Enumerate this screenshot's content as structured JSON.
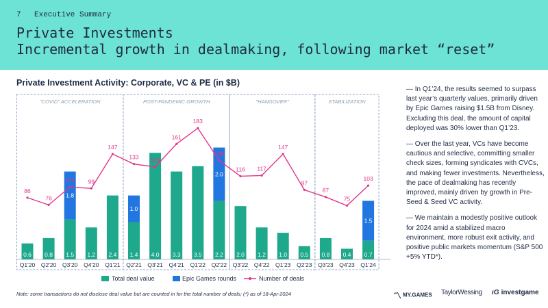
{
  "header": {
    "page_number": "7",
    "section": "Executive Summary",
    "title_line1": "Private Investments",
    "title_line2": "Incremental growth in dealmaking, following market “reset”"
  },
  "chart_title": "Private Investment Activity: Corporate, VC & PE (in $B)",
  "chart_data": {
    "type": "bar",
    "stacked": true,
    "categories": [
      "Q1'20",
      "Q2'20",
      "Q3'20",
      "Q4'20",
      "Q1'21",
      "Q2'21",
      "Q3'21",
      "Q4'21",
      "Q1'22",
      "Q2'22",
      "Q3'22",
      "Q4'22",
      "Q1'23",
      "Q2'23",
      "Q3'23",
      "Q4'23",
      "Q1'24"
    ],
    "series": [
      {
        "name": "Total deal value",
        "type": "bar",
        "color": "#1ea88c",
        "values": [
          0.6,
          0.8,
          1.5,
          1.2,
          2.4,
          1.4,
          4.0,
          3.3,
          3.5,
          2.2,
          2.0,
          1.2,
          1.0,
          0.5,
          0.8,
          0.4,
          0.7
        ],
        "labels": [
          "0.6",
          "0.8",
          "1.5",
          "1.2",
          "2.4",
          "1.4",
          "4.0",
          "3.3",
          "3.5",
          "2.2",
          "2.0",
          "1.2",
          "1.0",
          "0.5",
          "0.8",
          "0.4",
          "0.7"
        ]
      },
      {
        "name": "Epic Games rounds",
        "type": "bar",
        "color": "#2176e0",
        "values": [
          0,
          0,
          1.8,
          0,
          0,
          1.0,
          0,
          0,
          0,
          2.0,
          0,
          0,
          0,
          0,
          0,
          0,
          1.5
        ],
        "labels": [
          "",
          "",
          "1.8",
          "",
          "",
          "1.0",
          "",
          "",
          "",
          "2.0",
          "",
          "",
          "",
          "",
          "",
          "",
          "1.5"
        ]
      },
      {
        "name": "Number of deals",
        "type": "line",
        "color": "#e0368a",
        "values": [
          86,
          76,
          101,
          99,
          147,
          133,
          129,
          161,
          183,
          138,
          116,
          117,
          147,
          97,
          87,
          75,
          103
        ],
        "labels": [
          "86",
          "76",
          "101",
          "99",
          "147",
          "133",
          "129",
          "161",
          "183",
          "138",
          "116",
          "117",
          "147",
          "97",
          "87",
          "75",
          "103"
        ]
      }
    ],
    "periods": [
      {
        "label": "\"COVID\" ACCELERATION",
        "start": 0,
        "end": 4
      },
      {
        "label": "POST-PANDEMIC GROWTH",
        "start": 5,
        "end": 9
      },
      {
        "label": "\"HANGOVER\"",
        "start": 10,
        "end": 13
      },
      {
        "label": "STABILIZATION",
        "start": 14,
        "end": 16
      }
    ],
    "bar_ylim": [
      0,
      4.6
    ],
    "line_ylim": [
      0,
      230
    ]
  },
  "commentary": [
    "— In Q1’24, the results seemed to surpass last year’s quarterly values, primarily driven by Epic Games raising $1.5B from Disney. Excluding this deal, the amount of capital deployed was 30% lower than Q1’23.",
    "— Over the last year, VCs have become cautious and selective, committing smaller check sizes, forming syndicates with CVCs, and making fewer investments. Nevertheless, the pace of dealmaking has recently improved, mainly driven by growth in Pre-Seed & Seed VC activity.",
    "— We maintain a modestly positive outlook for 2024 amid a stabilized macro environment, more robust exit activity, and positive public markets momentum (S&P 500 +5% YTD*)."
  ],
  "footnote": "Note: some transactions do not disclose deal value but are counted in for the total number of deals; (*) as of 18-Apr-2024",
  "logos": {
    "my_games": "MY.GAMES",
    "taylor_wessing": "TaylorWessing",
    "investgame": "investgame"
  }
}
